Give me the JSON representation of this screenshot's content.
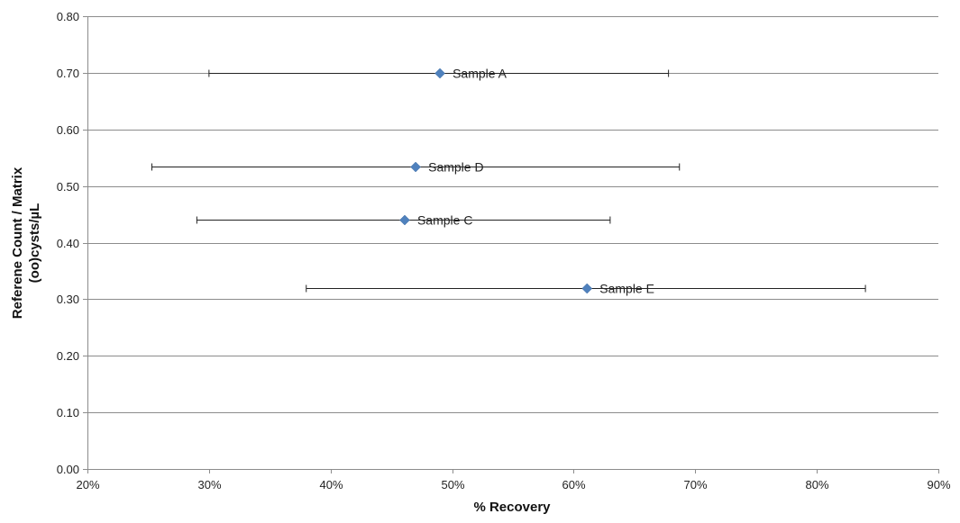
{
  "chart_data": {
    "type": "scatter",
    "xlabel": "% Recovery",
    "ylabel_lines": [
      "Referene Count / Matrix",
      "(oo)cysts/µL"
    ],
    "xlim": [
      0.2,
      0.9
    ],
    "ylim": [
      0.0,
      0.8
    ],
    "x_ticks": [
      0.2,
      0.3,
      0.4,
      0.5,
      0.6,
      0.7,
      0.8,
      0.9
    ],
    "x_tick_labels": [
      "20%",
      "30%",
      "40%",
      "50%",
      "60%",
      "70%",
      "80%",
      "90%"
    ],
    "y_ticks": [
      0.0,
      0.1,
      0.2,
      0.3,
      0.4,
      0.5,
      0.6,
      0.7,
      0.8
    ],
    "y_tick_labels": [
      "0.00",
      "0.10",
      "0.20",
      "0.30",
      "0.40",
      "0.50",
      "0.60",
      "0.70",
      "0.80"
    ],
    "grid": "horizontal",
    "marker": "diamond",
    "marker_color": "#4f81bd",
    "errorbar_color": "#222222",
    "gridline_color": "#8c8c8c",
    "points": [
      {
        "label": "Sample A",
        "x": 0.49,
        "y": 0.7,
        "x_low": 0.3,
        "x_high": 0.678
      },
      {
        "label": "Sample D",
        "x": 0.47,
        "y": 0.535,
        "x_low": 0.253,
        "x_high": 0.687
      },
      {
        "label": "Sample C",
        "x": 0.461,
        "y": 0.44,
        "x_low": 0.29,
        "x_high": 0.63
      },
      {
        "label": "Sample E",
        "x": 0.611,
        "y": 0.32,
        "x_low": 0.38,
        "x_high": 0.84
      }
    ]
  }
}
